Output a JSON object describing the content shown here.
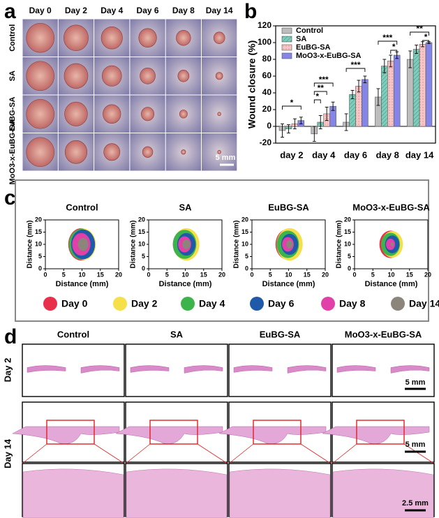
{
  "panel_labels": [
    "a",
    "b",
    "c",
    "d"
  ],
  "panel_a": {
    "columns": [
      "Day 0",
      "Day 2",
      "Day 4",
      "Day 6",
      "Day 8",
      "Day 14"
    ],
    "rows": [
      "Control",
      "SA",
      "EuBG-SA",
      "MoO3-x-EuBG-SA"
    ],
    "scale_bar": "5 mm"
  },
  "chart_data": {
    "type": "bar",
    "ylabel": "Wound closure (%)",
    "categories": [
      "day 2",
      "day 4",
      "day 6",
      "day 8",
      "day 14"
    ],
    "ylim": [
      -20,
      120
    ],
    "yticks": [
      -20,
      0,
      20,
      40,
      60,
      80,
      100,
      120
    ],
    "series": [
      {
        "name": "Control",
        "color": "#bdbdbd",
        "values": [
          -5,
          -9,
          5,
          35,
          80
        ],
        "errors": [
          8,
          9,
          10,
          10,
          10
        ]
      },
      {
        "name": "SA",
        "color": "#7fcdbb",
        "values": [
          -3,
          5,
          38,
          72,
          92
        ],
        "errors": [
          5,
          8,
          5,
          8,
          5
        ]
      },
      {
        "name": "EuBG-SA",
        "color": "#f7c6c7",
        "values": [
          3,
          15,
          48,
          78,
          98
        ],
        "errors": [
          6,
          8,
          7,
          7,
          3
        ]
      },
      {
        "name": "MoO3-x-EuBG-SA",
        "color": "#8585e8",
        "values": [
          7,
          24,
          56,
          85,
          100
        ],
        "errors": [
          4,
          5,
          4,
          4,
          1
        ]
      }
    ],
    "annotations": [
      "*",
      "***",
      "**",
      "*",
      "***",
      "***",
      "*",
      "**",
      "*"
    ]
  },
  "panel_c": {
    "titles": [
      "Control",
      "SA",
      "EuBG-SA",
      "MoO3-x-EuBG-SA"
    ],
    "xlabel": "Distance (mm)",
    "ylabel": "Distance (mm)",
    "ticks": [
      0,
      5,
      10,
      15,
      20
    ],
    "legend": [
      {
        "name": "Day 0",
        "color": "#e8304a"
      },
      {
        "name": "Day 2",
        "color": "#f5e04a"
      },
      {
        "name": "Day 4",
        "color": "#3cb44b"
      },
      {
        "name": "Day 6",
        "color": "#1f5aa8"
      },
      {
        "name": "Day 8",
        "color": "#e040a8"
      },
      {
        "name": "Day 14",
        "color": "#8c857c"
      }
    ]
  },
  "panel_d": {
    "columns": [
      "Control",
      "SA",
      "EuBG-SA",
      "MoO3-x-EuBG-SA"
    ],
    "rows": [
      "Day 2",
      "Day 14"
    ],
    "scale_bars": [
      "5 mm",
      "5 mm",
      "2.5 mm"
    ]
  }
}
